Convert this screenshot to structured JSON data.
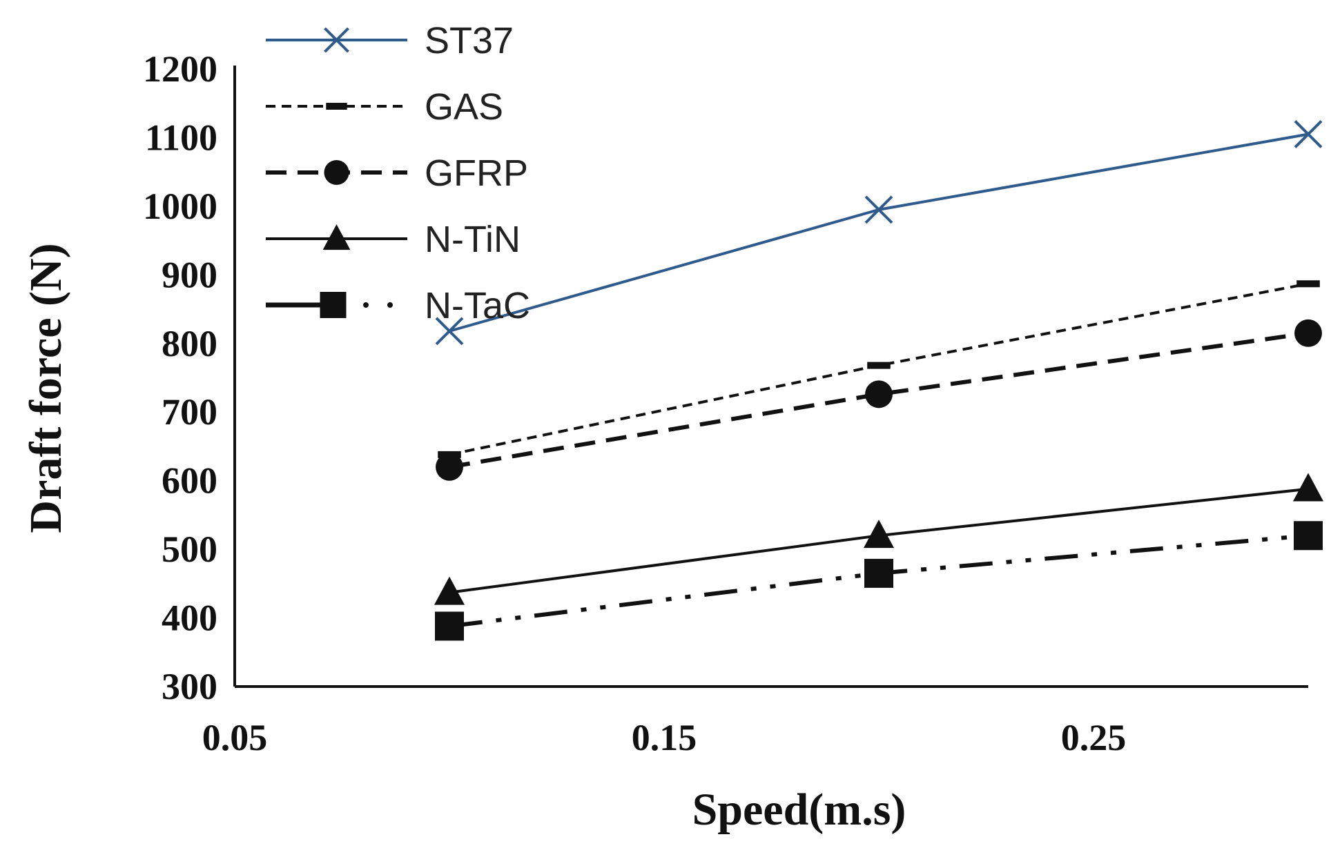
{
  "chart_data": {
    "type": "line",
    "title": "",
    "xlabel": "Speed(m.s)",
    "ylabel": "Draft force (N)",
    "xlim": [
      0.05,
      0.3
    ],
    "ylim": [
      300,
      1200
    ],
    "x_ticks": [
      "0.05",
      "0.15",
      "0.25"
    ],
    "x_tick_values": [
      0.05,
      0.15,
      0.25
    ],
    "y_ticks": [
      "300",
      "400",
      "500",
      "600",
      "700",
      "800",
      "900",
      "1000",
      "1100",
      "1200"
    ],
    "y_tick_values": [
      300,
      400,
      500,
      600,
      700,
      800,
      900,
      1000,
      1100,
      1200
    ],
    "grid": false,
    "legend_position": "top-left",
    "x": [
      0.1,
      0.2,
      0.3
    ],
    "series": [
      {
        "name": "ST37",
        "values": [
          818,
          995,
          1105
        ],
        "color": "#2e5a8c",
        "marker": "x",
        "dash": "solid"
      },
      {
        "name": "GAS",
        "values": [
          638,
          768,
          887
        ],
        "color": "#111111",
        "marker": "dash",
        "dash": "short-dash"
      },
      {
        "name": "GFRP",
        "values": [
          620,
          726,
          815
        ],
        "color": "#111111",
        "marker": "circle",
        "dash": "long-dash"
      },
      {
        "name": "N-TiN",
        "values": [
          437,
          520,
          588
        ],
        "color": "#111111",
        "marker": "triangle",
        "dash": "solid"
      },
      {
        "name": "N-TaC",
        "values": [
          388,
          465,
          520
        ],
        "color": "#111111",
        "marker": "square",
        "dash": "dash-dot-dot"
      }
    ]
  }
}
